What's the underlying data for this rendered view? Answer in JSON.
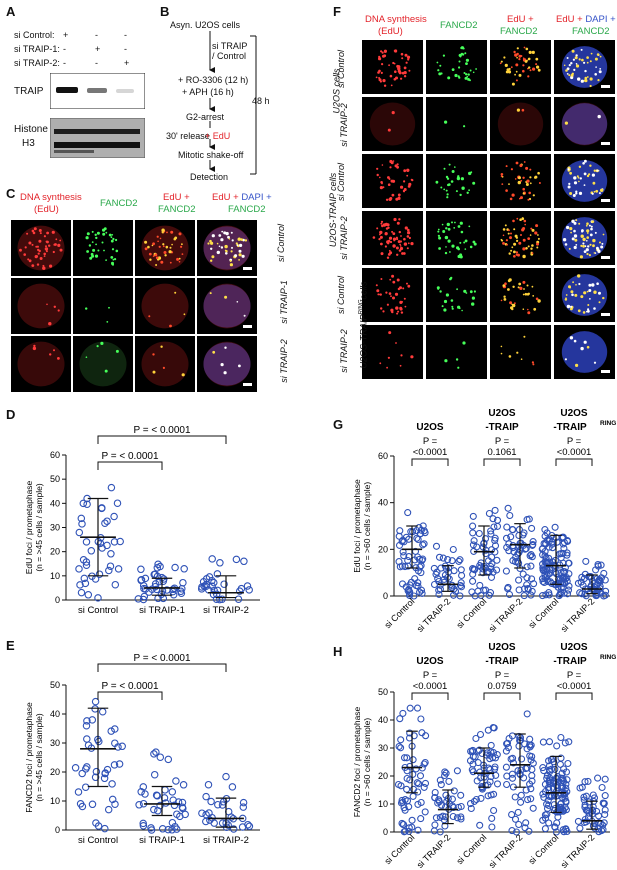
{
  "panels": {
    "A": "A",
    "B": "B",
    "C": "C",
    "D": "D",
    "E": "E",
    "F": "F",
    "G": "G",
    "H": "H"
  },
  "panelA": {
    "rows": [
      {
        "label": "si Control:",
        "marks": [
          "+",
          "-",
          "-"
        ]
      },
      {
        "label": "si TRAIP-1:",
        "marks": [
          "-",
          "+",
          "-"
        ]
      },
      {
        "label": "si TRAIP-2:",
        "marks": [
          "-",
          "-",
          "+"
        ]
      }
    ],
    "blot1": "TRAIP",
    "blot2a": "Histone",
    "blot2b": "H3"
  },
  "panelB": {
    "step1": "Asyn. U2OS cells",
    "step2a": "si TRAIP",
    "step2b": "/ Control",
    "step3a": "+ RO-3306 (12 h)",
    "step3b": "+ APH (16 h)",
    "step4": "G2-arrest",
    "step5a": "30' release",
    "step5b": "+ EdU",
    "step6": "Mitotic shake-off",
    "step7": "Detection",
    "duration": "48 h"
  },
  "panelC": {
    "col1a": "DNA synthesis",
    "col1b": "(EdU)",
    "col2": "FANCD2",
    "col3a": "EdU +",
    "col3b": "FANCD2",
    "col4a": "EdU +",
    "col4b": "DAPI +",
    "col4c": "FANCD2",
    "rows": [
      "si Control",
      "si TRAIP-1",
      "si TRAIP-2"
    ]
  },
  "panelF": {
    "col1a": "DNA synthesis",
    "col1b": "(EdU)",
    "col2": "FANCD2",
    "col3a": "EdU +",
    "col3b": "FANCD2",
    "col4a": "EdU +",
    "col4b": "DAPI +",
    "col4c": "FANCD2",
    "groups": [
      "U2OS cells",
      "U2OS-TRAIP cells",
      "U2OS-TRAIP",
      "RING",
      "cells"
    ],
    "rows": [
      "si Control",
      "si TRAIP-2",
      "si Control",
      "si TRAIP-2",
      "si Control",
      "si TRAIP-2"
    ]
  },
  "chart_data": [
    {
      "panel": "D",
      "type": "scatter",
      "ylabel": "EdU foci / prometaphase",
      "ylabel2": "(n = >45 cells / sample)",
      "categories": [
        "si Control",
        "si TRAIP-1",
        "si TRAIP-2"
      ],
      "ylim": [
        0,
        60
      ],
      "yticks": [
        "0",
        "10",
        "20",
        "30",
        "40",
        "50",
        "60"
      ],
      "median": [
        26,
        5,
        3
      ],
      "q1": [
        10,
        2,
        1
      ],
      "q3": [
        42,
        9,
        10
      ],
      "annotations": [
        "P = < 0.0001",
        "P = < 0.0001"
      ]
    },
    {
      "panel": "E",
      "type": "scatter",
      "ylabel": "FANCD2 foci / prometaphase",
      "ylabel2": "(n = >45 cells / sample)",
      "categories": [
        "si Control",
        "si TRAIP-1",
        "si TRAIP-2"
      ],
      "ylim": [
        0,
        50
      ],
      "yticks": [
        "0",
        "10",
        "20",
        "30",
        "40",
        "50"
      ],
      "median": [
        28,
        9,
        4
      ],
      "q1": [
        15,
        5,
        1
      ],
      "q3": [
        42,
        15,
        11
      ],
      "annotations": [
        "P = < 0.0001",
        "P = < 0.0001"
      ]
    },
    {
      "panel": "G",
      "type": "scatter",
      "ylabel": "EdU foci / prometaphase",
      "ylabel2": "(n = >60 cells / sample)",
      "categories": [
        "si Control",
        "si TRAIP-2",
        "si Control",
        "si TRAIP-2",
        "si Control",
        "si TRAIP-2"
      ],
      "ylim": [
        0,
        60
      ],
      "yticks": [
        "0",
        "20",
        "40",
        "60"
      ],
      "median": [
        20,
        5,
        19,
        22,
        13,
        3
      ],
      "q1": [
        12,
        2,
        9,
        12,
        5,
        1
      ],
      "q3": [
        30,
        13,
        30,
        31,
        26,
        9
      ],
      "groups": [
        "U2OS",
        "U2OS",
        "U2OS",
        "-TRAIP",
        "U2OS",
        "-TRAIP",
        "RING"
      ],
      "pvalues": [
        "P =",
        "<0.0001",
        "P =",
        "0.1061",
        "P =",
        "<0.0001"
      ]
    },
    {
      "panel": "H",
      "type": "scatter",
      "ylabel": "FANCD2 foci / prometaphase",
      "ylabel2": "(n = >60 cells / sample)",
      "categories": [
        "si Control",
        "si TRAIP-2",
        "si Control",
        "si TRAIP-2",
        "si Control",
        "si TRAIP-2"
      ],
      "ylim": [
        0,
        50
      ],
      "yticks": [
        "0",
        "10",
        "20",
        "30",
        "40",
        "50"
      ],
      "median": [
        23,
        8,
        21,
        24,
        14,
        4
      ],
      "q1": [
        14,
        3,
        16,
        16,
        7,
        1
      ],
      "q3": [
        36,
        15,
        30,
        35,
        27,
        11
      ],
      "groups": [
        "U2OS",
        "U2OS",
        "U2OS",
        "-TRAIP",
        "U2OS",
        "-TRAIP",
        "RING"
      ],
      "pvalues": [
        "P =",
        "<0.0001",
        "P =",
        "0.0759",
        "P =",
        "<0.0001"
      ]
    }
  ]
}
